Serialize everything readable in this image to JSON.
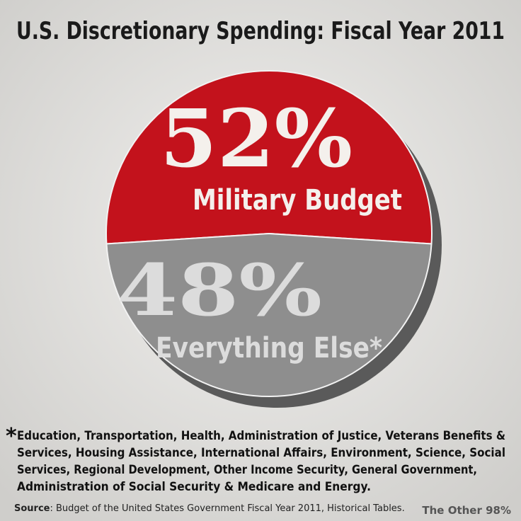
{
  "chart_data": {
    "type": "pie",
    "title": "U.S. Discretionary Spending: Fiscal Year 2011",
    "categories": [
      "Military Budget",
      "Everything Else*"
    ],
    "values": [
      52,
      48
    ],
    "value_labels": [
      "52%",
      "48%"
    ],
    "colors": [
      "#c3121c",
      "#8e8e8e"
    ],
    "footnote_marker": "*",
    "footnote": [
      "Education, Transportation, Health, Administration of Justice, Veterans Benefits &",
      "Services, Housing Assistance, International Affairs, Environment, Science, Social",
      "Services, Regional Development, Other Income Security, General Government,",
      "Administration of Social Security & Medicare and Energy."
    ],
    "source_label": "Source",
    "source": ": Budget of the United States Government Fiscal Year 2011, Historical Tables.",
    "credit": "The Other 98%"
  }
}
